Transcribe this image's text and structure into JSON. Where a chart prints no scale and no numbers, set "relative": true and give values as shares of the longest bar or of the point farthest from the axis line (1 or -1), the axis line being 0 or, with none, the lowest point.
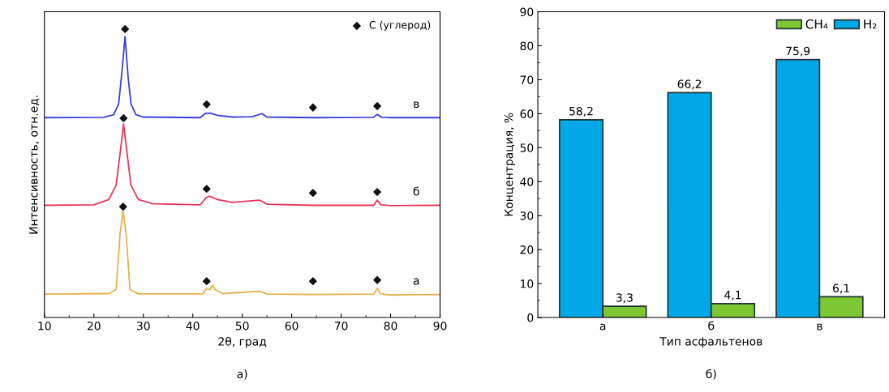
{
  "chart_data": [
    {
      "type": "line",
      "relative": true,
      "xlabel": "2θ, град",
      "ylabel": "Интенсивность, отн.ед.",
      "xlim": [
        10,
        90
      ],
      "xticks": [
        10,
        20,
        30,
        40,
        50,
        60,
        70,
        80,
        90
      ],
      "tick_labels": "x",
      "grid": false,
      "legend": "top right",
      "marker": "none",
      "line_style": "solid",
      "annotations": [
        "в",
        "б",
        "а",
        "а)"
      ],
      "series": [
        {
          "color": "#3a3fd8",
          "x": [
            10,
            22,
            24,
            25,
            25.7,
            26.3,
            26.9,
            27.5,
            28.5,
            30,
            41.5,
            42.5,
            43.5,
            45,
            48,
            52,
            54,
            55,
            64.3,
            76.5,
            77.3,
            78.2,
            80,
            90
          ],
          "values": [
            0.693,
            0.694,
            0.703,
            0.74,
            0.857,
            0.974,
            0.837,
            0.74,
            0.703,
            0.695,
            0.693,
            0.707,
            0.709,
            0.701,
            0.695,
            0.696,
            0.707,
            0.695,
            0.693,
            0.694,
            0.704,
            0.694,
            0.693,
            0.693
          ]
        },
        {
          "color": "#e8365a",
          "x": [
            10,
            20,
            23,
            24.5,
            25.4,
            26.0,
            26.6,
            27.5,
            29,
            32,
            41.5,
            42.8,
            43.5,
            45,
            48,
            53.5,
            55,
            64.3,
            76.6,
            77.3,
            78,
            80,
            90
          ],
          "values": [
            0.389,
            0.391,
            0.409,
            0.458,
            0.584,
            0.671,
            0.584,
            0.458,
            0.409,
            0.394,
            0.391,
            0.417,
            0.42,
            0.409,
            0.399,
            0.407,
            0.393,
            0.389,
            0.389,
            0.407,
            0.391,
            0.388,
            0.389
          ]
        },
        {
          "color": "#e8b04a",
          "x": [
            10,
            23,
            24.5,
            25.3,
            25.9,
            26.5,
            27.3,
            29,
            42,
            42.8,
            43.5,
            44,
            44.5,
            46,
            53.5,
            55,
            64.3,
            76.6,
            77.3,
            78,
            80,
            90
          ],
          "values": [
            0.081,
            0.083,
            0.097,
            0.292,
            0.368,
            0.292,
            0.097,
            0.082,
            0.082,
            0.101,
            0.097,
            0.112,
            0.097,
            0.083,
            0.091,
            0.081,
            0.08,
            0.081,
            0.101,
            0.082,
            0.078,
            0.08
          ]
        },
        {
          "type": "scatter",
          "name": "C (углерод)",
          "color": "#111111",
          "marker": "diamond",
          "x": [
            26.3,
            42.8,
            64.3,
            77.3,
            26.0,
            42.8,
            64.3,
            77.3,
            25.9,
            42.8,
            64.3,
            77.3
          ],
          "values": [
            1.0,
            0.739,
            0.728,
            0.733,
            0.691,
            0.446,
            0.432,
            0.435,
            0.384,
            0.126,
            0.126,
            0.13
          ]
        }
      ]
    },
    {
      "type": "bar",
      "xlabel": "Тип асфальтенов",
      "ylabel": "Концентрация, %",
      "categories": [
        "а",
        "б",
        "в"
      ],
      "ylim": [
        0,
        90
      ],
      "yticks": [
        0,
        10,
        20,
        30,
        40,
        50,
        60,
        70,
        80,
        90
      ],
      "grid": false,
      "legend": "top right",
      "annotations": [
        "б)"
      ],
      "series": [
        {
          "name": "H₂",
          "color": "#00a8e8",
          "values": [
            58.2,
            66.2,
            75.9
          ],
          "value_labels": [
            "58,2",
            "66,2",
            "75,9"
          ]
        },
        {
          "name": "CH₄",
          "color": "#7dc832",
          "values": [
            3.3,
            4.1,
            6.1
          ],
          "value_labels": [
            "3,3",
            "4,1",
            "6,1"
          ]
        }
      ]
    }
  ]
}
